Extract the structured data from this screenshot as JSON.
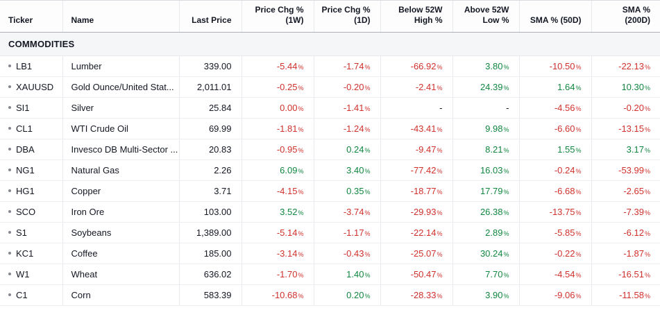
{
  "colors": {
    "negative": "#d0312d",
    "positive": "#118640",
    "text": "#131722"
  },
  "table": {
    "section": "COMMODITIES",
    "columns": [
      {
        "key": "ticker",
        "label": "Ticker"
      },
      {
        "key": "name",
        "label": "Name"
      },
      {
        "key": "last-price",
        "label": "Last Price"
      },
      {
        "key": "price-chg-1w",
        "label": "Price Chg %\n(1W)"
      },
      {
        "key": "price-chg-1d",
        "label": "Price Chg %\n(1D)"
      },
      {
        "key": "below-52w-high",
        "label": "Below 52W\nHigh %"
      },
      {
        "key": "above-52w-low",
        "label": "Above 52W\nLow %"
      },
      {
        "key": "sma-50d",
        "label": "SMA % (50D)"
      },
      {
        "key": "sma-200d",
        "label": "SMA %\n(200D)"
      }
    ],
    "rows": [
      {
        "ticker": "LB1",
        "name": "Lumber",
        "last_price": "339.00",
        "changes": [
          "-5.44",
          "-1.74",
          "-66.92",
          "3.80",
          "-10.50",
          "-22.13"
        ]
      },
      {
        "ticker": "XAUUSD",
        "name": "Gold Ounce/United Stat...",
        "last_price": "2,011.01",
        "changes": [
          "-0.25",
          "-0.20",
          "-2.41",
          "24.39",
          "1.64",
          "10.30"
        ]
      },
      {
        "ticker": "SI1",
        "name": "Silver",
        "last_price": "25.84",
        "changes": [
          "0.00",
          "-1.41",
          "-",
          "-",
          "-4.56",
          "-0.20"
        ]
      },
      {
        "ticker": "CL1",
        "name": "WTI Crude Oil",
        "last_price": "69.99",
        "changes": [
          "-1.81",
          "-1.24",
          "-43.41",
          "9.98",
          "-6.60",
          "-13.15"
        ]
      },
      {
        "ticker": "DBA",
        "name": "Invesco DB Multi-Sector ...",
        "last_price": "20.83",
        "changes": [
          "-0.95",
          "0.24",
          "-9.47",
          "8.21",
          "1.55",
          "3.17"
        ]
      },
      {
        "ticker": "NG1",
        "name": "Natural Gas",
        "last_price": "2.26",
        "changes": [
          "6.09",
          "3.40",
          "-77.42",
          "16.03",
          "-0.24",
          "-53.99"
        ]
      },
      {
        "ticker": "HG1",
        "name": "Copper",
        "last_price": "3.71",
        "changes": [
          "-4.15",
          "0.35",
          "-18.77",
          "17.79",
          "-6.68",
          "-2.65"
        ]
      },
      {
        "ticker": "SCO",
        "name": "Iron Ore",
        "last_price": "103.00",
        "changes": [
          "3.52",
          "-3.74",
          "-29.93",
          "26.38",
          "-13.75",
          "-7.39"
        ]
      },
      {
        "ticker": "S1",
        "name": "Soybeans",
        "last_price": "1,389.00",
        "changes": [
          "-5.14",
          "-1.17",
          "-22.14",
          "2.89",
          "-5.85",
          "-6.12"
        ]
      },
      {
        "ticker": "KC1",
        "name": "Coffee",
        "last_price": "185.00",
        "changes": [
          "-3.14",
          "-0.43",
          "-25.07",
          "30.24",
          "-0.22",
          "-1.87"
        ]
      },
      {
        "ticker": "W1",
        "name": "Wheat",
        "last_price": "636.02",
        "changes": [
          "-1.70",
          "1.40",
          "-50.47",
          "7.70",
          "-4.54",
          "-16.51"
        ]
      },
      {
        "ticker": "C1",
        "name": "Corn",
        "last_price": "583.39",
        "changes": [
          "-10.68",
          "0.20",
          "-28.33",
          "3.90",
          "-9.06",
          "-11.58"
        ]
      }
    ]
  }
}
